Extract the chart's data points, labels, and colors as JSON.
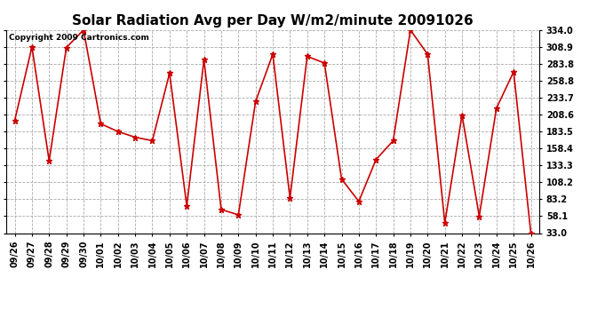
{
  "title": "Solar Radiation Avg per Day W/m2/minute 20091026",
  "copyright_text": "Copyright 2009 Cartronics.com",
  "x_labels": [
    "09/26",
    "09/27",
    "09/28",
    "09/29",
    "09/30",
    "10/01",
    "10/02",
    "10/03",
    "10/04",
    "10/05",
    "10/06",
    "10/07",
    "10/08",
    "10/09",
    "10/10",
    "10/11",
    "10/12",
    "10/13",
    "10/14",
    "10/15",
    "10/16",
    "10/17",
    "10/18",
    "10/19",
    "10/20",
    "10/21",
    "10/22",
    "10/23",
    "10/24",
    "10/25",
    "10/26"
  ],
  "y_values": [
    200.0,
    308.9,
    140.0,
    308.0,
    334.0,
    195.0,
    183.5,
    175.0,
    170.0,
    270.0,
    73.0,
    290.0,
    68.0,
    60.0,
    228.0,
    298.0,
    85.0,
    295.0,
    285.0,
    113.0,
    80.0,
    142.0,
    170.0,
    334.0,
    298.0,
    48.0,
    208.0,
    58.0,
    218.0,
    272.0,
    33.0
  ],
  "y_ticks": [
    33.0,
    58.1,
    83.2,
    108.2,
    133.3,
    158.4,
    183.5,
    208.6,
    233.7,
    258.8,
    283.8,
    308.9,
    334.0
  ],
  "line_color": "#cc0000",
  "marker": "*",
  "marker_size": 5,
  "bg_color": "#ffffff",
  "plot_bg_color": "#ffffff",
  "grid_color": "#aaaaaa",
  "title_fontsize": 11,
  "tick_fontsize": 7,
  "copyright_fontsize": 6.5
}
